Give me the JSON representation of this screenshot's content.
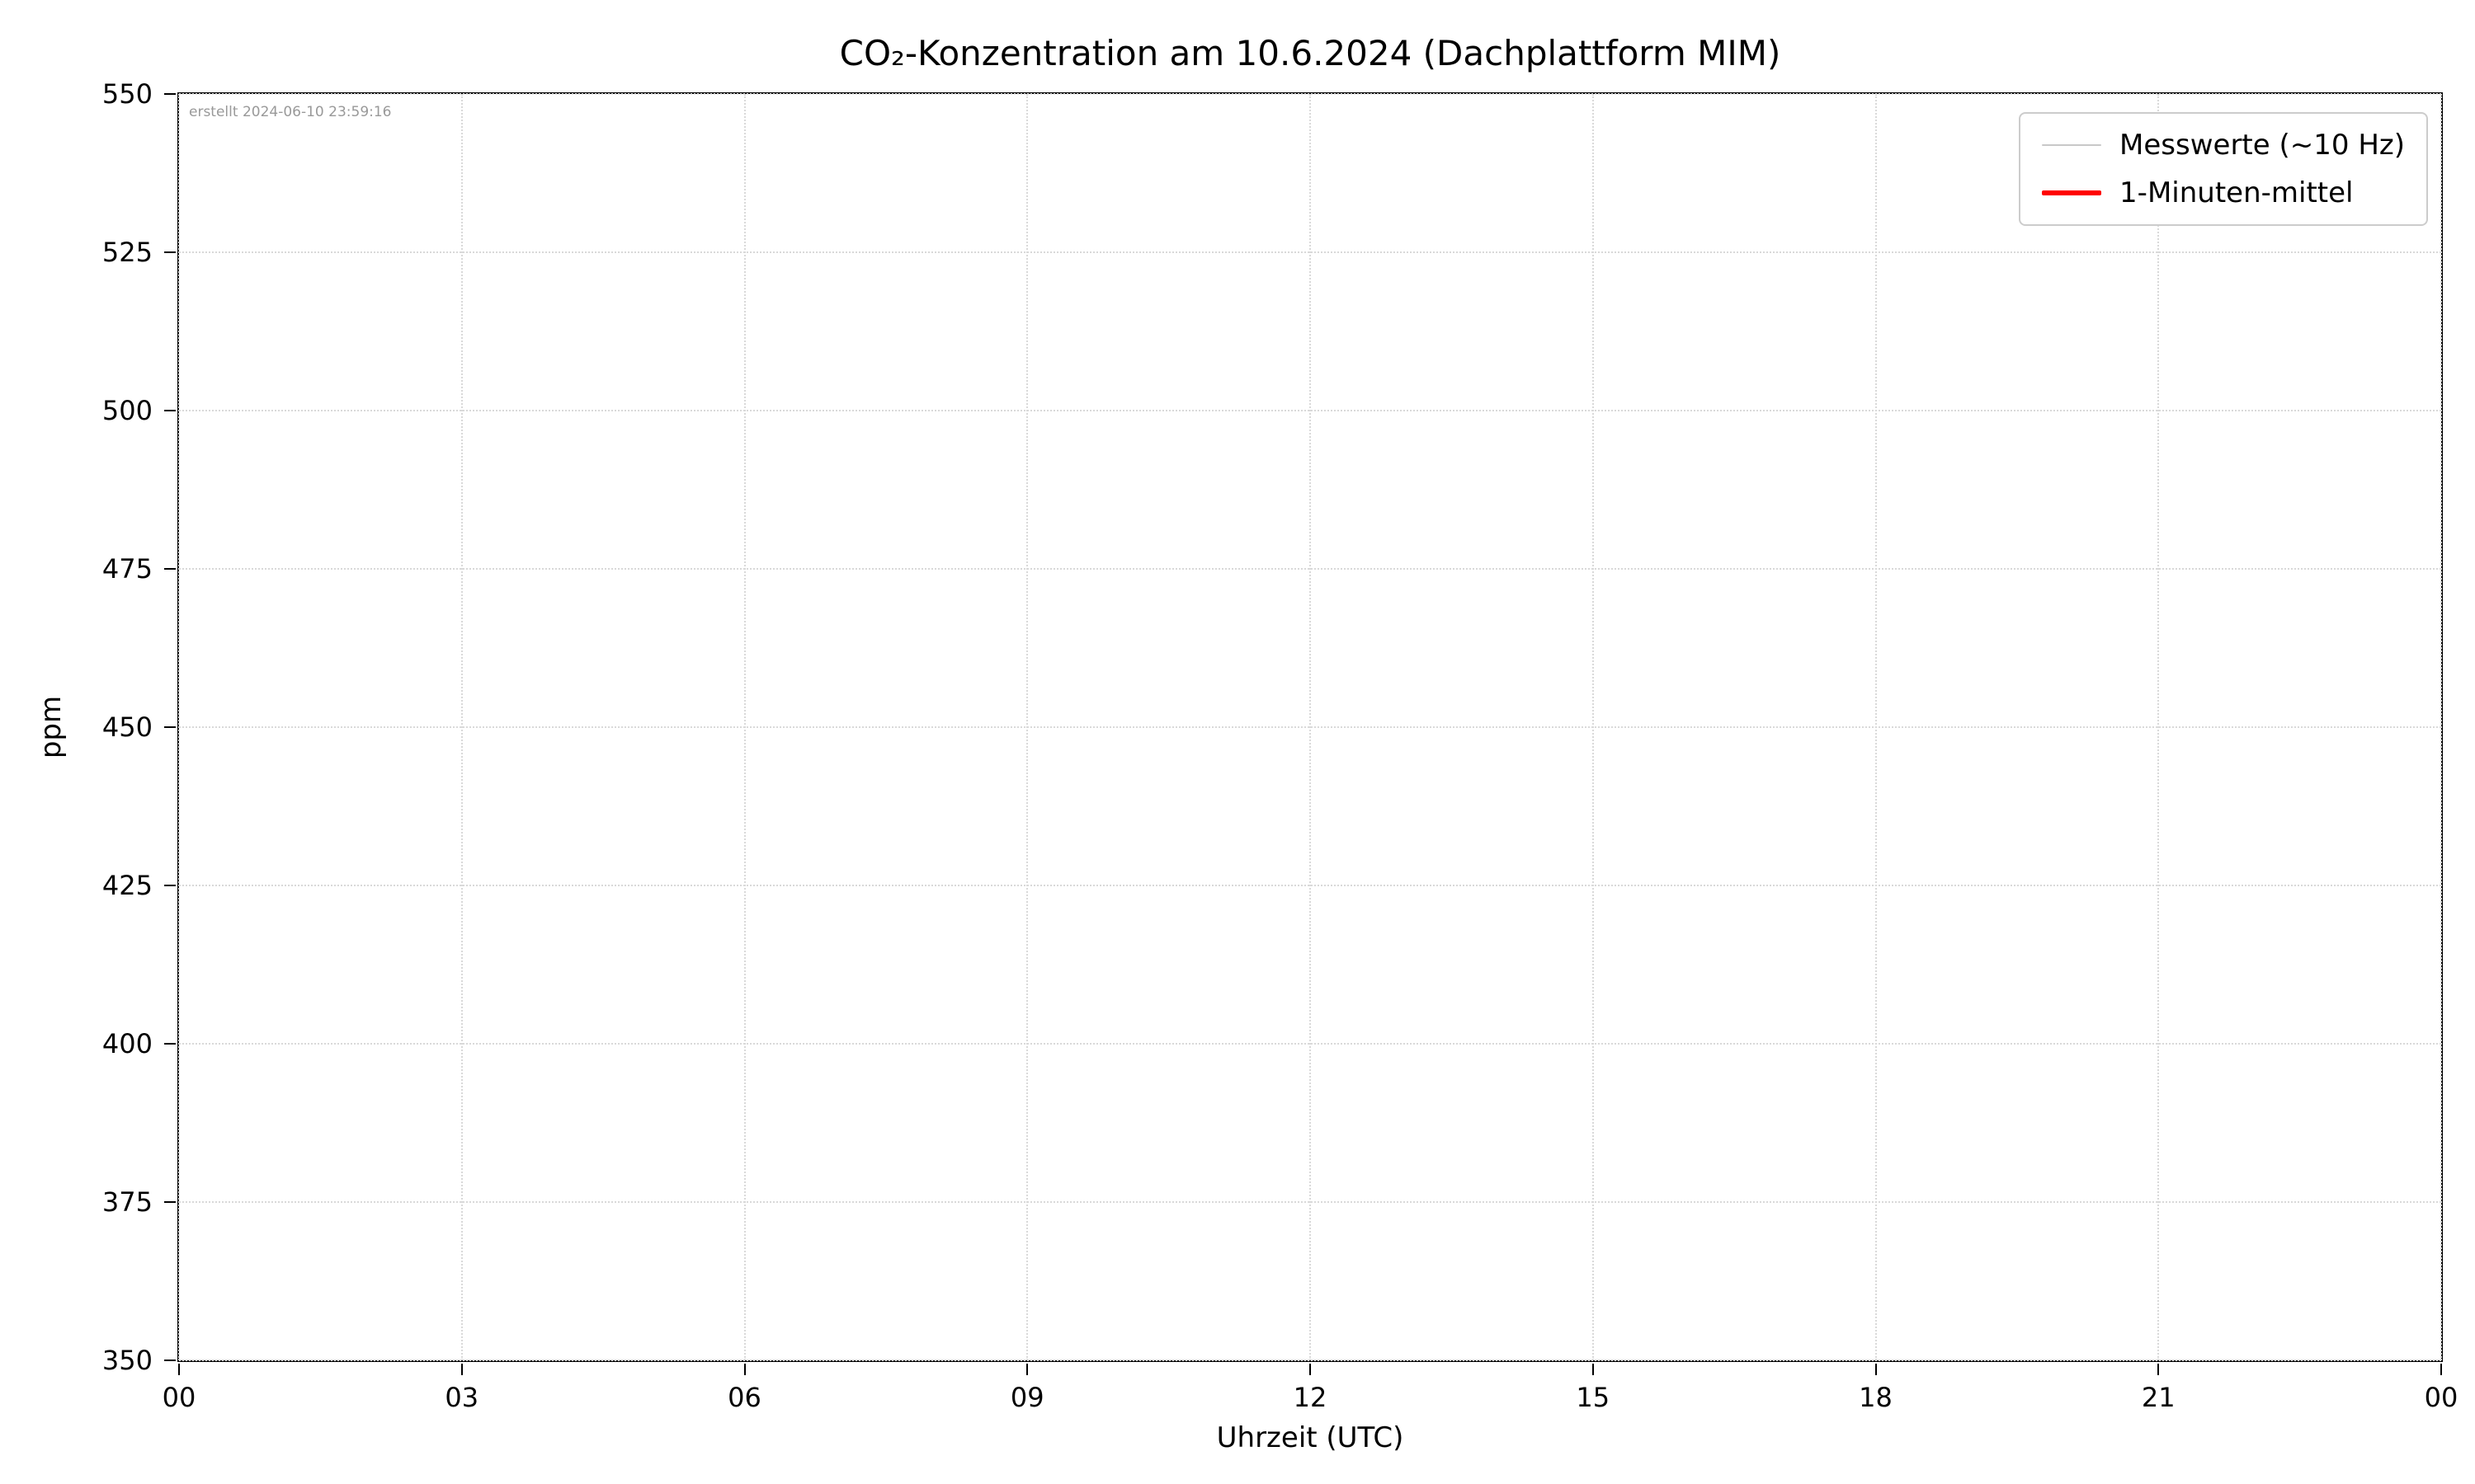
{
  "chart_data": {
    "type": "line",
    "title": "CO₂-Konzentration am 10.6.2024 (Dachplattform MIM)",
    "annotation": "erstellt 2024-06-10 23:59:16",
    "xlabel": "Uhrzeit (UTC)",
    "ylabel": "ppm",
    "x_ticks": [
      "00",
      "03",
      "06",
      "09",
      "12",
      "15",
      "18",
      "21",
      "00"
    ],
    "y_ticks": [
      350,
      375,
      400,
      425,
      450,
      475,
      500,
      525,
      550
    ],
    "ylim": [
      350,
      550
    ],
    "xlim_hours": [
      0,
      24
    ],
    "grid": true,
    "grid_style": "dotted",
    "legend_position": "upper right",
    "series": [
      {
        "name": "Messwerte (~10 Hz)",
        "color": "#c8c8c8",
        "linewidth": 2,
        "values": []
      },
      {
        "name": "1-Minuten-mittel",
        "color": "#ff0000",
        "linewidth": 6,
        "values": []
      }
    ]
  }
}
